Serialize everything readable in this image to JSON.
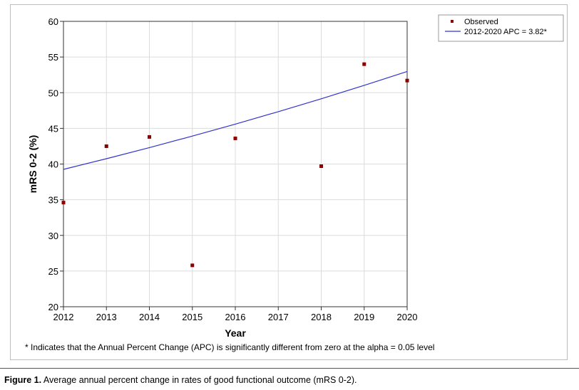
{
  "chart_data": {
    "type": "scatter",
    "xlabel": "Year",
    "ylabel": "mRS 0-2 (%)",
    "xlim": [
      2012,
      2020
    ],
    "ylim": [
      20,
      60
    ],
    "x_ticks": [
      "2012",
      "2013",
      "2014",
      "2015",
      "2016",
      "2017",
      "2018",
      "2019",
      "2020"
    ],
    "y_ticks": [
      "20",
      "25",
      "30",
      "35",
      "40",
      "45",
      "50",
      "55",
      "60"
    ],
    "grid": true,
    "legend_position": "top-right",
    "series": [
      {
        "name": "Observed",
        "kind": "points",
        "color": "#8b0000",
        "x": [
          2012,
          2013,
          2014,
          2015,
          2016,
          2018,
          2019,
          2020
        ],
        "y": [
          34.6,
          42.5,
          43.8,
          25.8,
          43.6,
          39.7,
          54.0,
          51.7
        ]
      },
      {
        "name": "2012-2020 APC  = 3.82*",
        "kind": "line",
        "color": "#3333cc",
        "x": [
          2012,
          2013,
          2014,
          2015,
          2016,
          2017,
          2018,
          2019,
          2020
        ],
        "y": [
          39.25,
          40.75,
          42.3,
          43.92,
          45.6,
          47.34,
          49.15,
          51.03,
          52.98
        ]
      }
    ],
    "footnote": "* Indicates that the Annual Percent Change (APC) is significantly different from zero at the alpha = 0.05 level"
  },
  "caption": {
    "label": "Figure 1.",
    "text": "Average annual percent change in rates of good functional outcome (mRS 0-2)."
  }
}
